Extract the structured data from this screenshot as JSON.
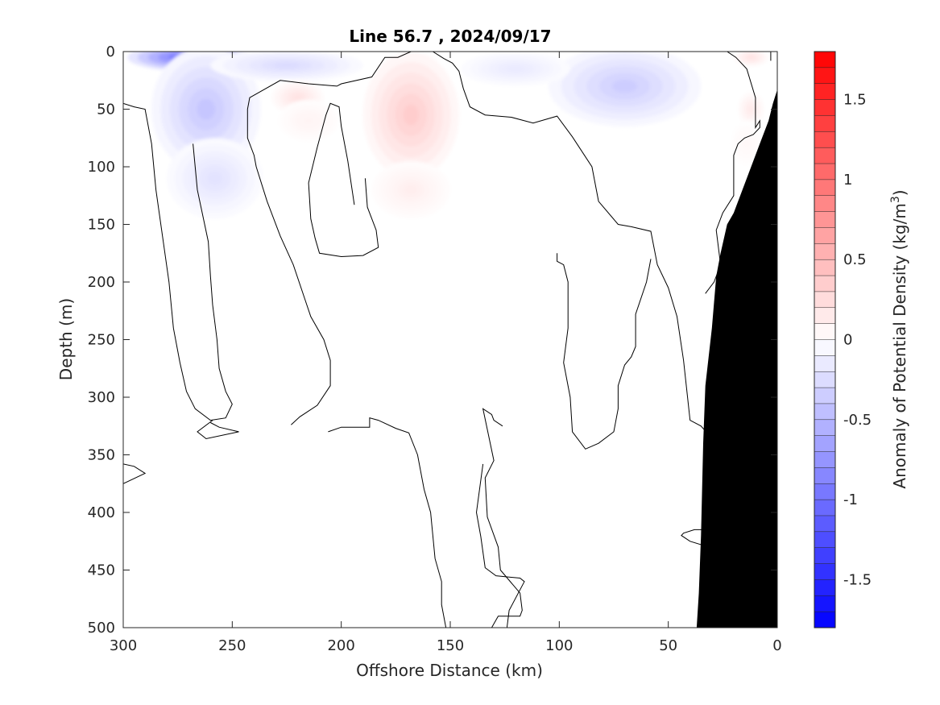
{
  "chart_data": {
    "type": "heatmap",
    "title": "Line 56.7 , 2024/09/17",
    "xlabel": "Offshore Distance (km)",
    "ylabel": "Depth (m)",
    "xlim": [
      300,
      0
    ],
    "ylim": [
      0,
      500
    ],
    "x_reversed": true,
    "y_reversed": true,
    "xticks": [
      300,
      250,
      200,
      150,
      100,
      50,
      0
    ],
    "yticks": [
      0,
      50,
      100,
      150,
      200,
      250,
      300,
      350,
      400,
      450,
      500
    ],
    "grid": false,
    "colorbar": {
      "label_main": "Anomaly of Potential Density (kg/m",
      "label_sup": "3",
      "label_end": ")",
      "range": [
        -1.8,
        1.8
      ],
      "levels": 36,
      "ticks": [
        "-1.5",
        "-1",
        "-0.5",
        "0",
        "0.5",
        "1",
        "1.5"
      ],
      "tick_values": [
        -1.5,
        -1,
        -0.5,
        0,
        0.5,
        1,
        1.5
      ],
      "neg_color": "#0000ff",
      "pos_color": "#ff0000",
      "mid_color": "#ffffff"
    },
    "anomaly_blobs": [
      {
        "x": 270,
        "y": 5,
        "rx": 28,
        "ry": 12,
        "value": -1.1
      },
      {
        "x": 262,
        "y": 50,
        "rx": 25,
        "ry": 55,
        "value": -0.4
      },
      {
        "x": 258,
        "y": 110,
        "rx": 22,
        "ry": 35,
        "value": -0.2
      },
      {
        "x": 225,
        "y": 12,
        "rx": 35,
        "ry": 14,
        "value": -0.25
      },
      {
        "x": 168,
        "y": 55,
        "rx": 22,
        "ry": 55,
        "value": 0.35
      },
      {
        "x": 168,
        "y": 120,
        "rx": 18,
        "ry": 25,
        "value": 0.12
      },
      {
        "x": 220,
        "y": 40,
        "rx": 12,
        "ry": 15,
        "value": 0.2
      },
      {
        "x": 215,
        "y": 60,
        "rx": 14,
        "ry": 18,
        "value": 0.08
      },
      {
        "x": 72,
        "y": 8,
        "rx": 20,
        "ry": 12,
        "value": -0.55
      },
      {
        "x": 70,
        "y": 30,
        "rx": 35,
        "ry": 35,
        "value": -0.35
      },
      {
        "x": 120,
        "y": 15,
        "rx": 25,
        "ry": 15,
        "value": -0.15
      },
      {
        "x": 12,
        "y": 5,
        "rx": 8,
        "ry": 8,
        "value": 0.2
      },
      {
        "x": 12,
        "y": 50,
        "rx": 6,
        "ry": 15,
        "value": 0.15
      },
      {
        "x": 14,
        "y": 80,
        "rx": 8,
        "ry": 20,
        "value": 0.05
      }
    ],
    "zero_contours": [
      [
        [
          300,
          45
        ],
        [
          295,
          48
        ],
        [
          290,
          50
        ],
        [
          287,
          80
        ],
        [
          285,
          120
        ],
        [
          282,
          160
        ],
        [
          279,
          200
        ],
        [
          277,
          240
        ],
        [
          274,
          270
        ],
        [
          271,
          295
        ],
        [
          267,
          310
        ],
        [
          260,
          320
        ],
        [
          253,
          318
        ],
        [
          250,
          306
        ],
        [
          253,
          295
        ],
        [
          256,
          275
        ],
        [
          257,
          250
        ],
        [
          259,
          220
        ],
        [
          260,
          195
        ],
        [
          261,
          165
        ],
        [
          266,
          120
        ],
        [
          268,
          80
        ]
      ],
      [
        [
          259,
          320
        ],
        [
          266,
          330
        ],
        [
          262,
          336
        ],
        [
          247,
          330
        ],
        [
          256,
          326
        ],
        [
          260,
          322
        ]
      ],
      [
        [
          300,
          358
        ],
        [
          295,
          360
        ],
        [
          290,
          366
        ],
        [
          300,
          375
        ]
      ],
      [
        [
          239,
          100
        ],
        [
          234,
          130
        ],
        [
          228,
          160
        ],
        [
          222,
          185
        ],
        [
          214,
          230
        ],
        [
          208,
          250
        ],
        [
          205,
          268
        ],
        [
          205,
          290
        ],
        [
          211,
          307
        ],
        [
          219,
          317
        ],
        [
          223,
          324
        ]
      ],
      [
        [
          239,
          100
        ],
        [
          240,
          90
        ],
        [
          243,
          75
        ],
        [
          243,
          50
        ],
        [
          242,
          40
        ],
        [
          228,
          25
        ],
        [
          215,
          28
        ],
        [
          202,
          30
        ],
        [
          200,
          28
        ],
        [
          186,
          22
        ],
        [
          180,
          5
        ],
        [
          174,
          5
        ],
        [
          168,
          0
        ]
      ],
      [
        [
          194,
          133
        ],
        [
          197,
          95
        ],
        [
          200,
          65
        ],
        [
          201,
          48
        ],
        [
          205,
          45
        ],
        [
          207,
          55
        ],
        [
          211,
          83
        ],
        [
          215,
          114
        ],
        [
          214,
          145
        ],
        [
          212,
          162
        ],
        [
          210,
          175
        ],
        [
          200,
          178
        ],
        [
          190,
          177
        ],
        [
          183,
          170
        ],
        [
          184,
          155
        ],
        [
          188,
          135
        ],
        [
          189,
          110
        ]
      ],
      [
        [
          158,
          0
        ],
        [
          153,
          6
        ],
        [
          149,
          10
        ],
        [
          146,
          17
        ],
        [
          144,
          32
        ],
        [
          141,
          48
        ],
        [
          134,
          55
        ],
        [
          122,
          57
        ],
        [
          112,
          62
        ],
        [
          101,
          56
        ],
        [
          94,
          74
        ],
        [
          85,
          100
        ],
        [
          82,
          130
        ],
        [
          73,
          150
        ],
        [
          67,
          152
        ],
        [
          58,
          156
        ],
        [
          55,
          185
        ],
        [
          50,
          205
        ],
        [
          46,
          230
        ],
        [
          43,
          268
        ],
        [
          40,
          320
        ],
        [
          35,
          325
        ],
        [
          28,
          340
        ],
        [
          32,
          360
        ]
      ],
      [
        [
          101,
          175
        ],
        [
          101,
          178
        ],
        [
          101,
          182
        ],
        [
          98,
          185
        ],
        [
          96,
          200
        ],
        [
          96,
          240
        ],
        [
          98,
          270
        ],
        [
          95,
          300
        ],
        [
          94,
          330
        ],
        [
          88,
          345
        ],
        [
          82,
          340
        ],
        [
          75,
          330
        ],
        [
          73,
          310
        ],
        [
          73,
          290
        ],
        [
          70,
          272
        ],
        [
          67,
          265
        ],
        [
          65,
          256
        ],
        [
          65,
          228
        ],
        [
          60,
          200
        ],
        [
          58,
          180
        ]
      ],
      [
        [
          152,
          500
        ],
        [
          154,
          480
        ],
        [
          154,
          460
        ],
        [
          157,
          440
        ],
        [
          159,
          400
        ],
        [
          162,
          380
        ],
        [
          165,
          350
        ],
        [
          169,
          331
        ],
        [
          175,
          327
        ],
        [
          183,
          320
        ],
        [
          187,
          318
        ],
        [
          187,
          326
        ],
        [
          200,
          326
        ],
        [
          206,
          330
        ]
      ],
      [
        [
          126,
          325
        ],
        [
          130,
          320
        ],
        [
          131,
          315
        ],
        [
          135,
          310
        ],
        [
          130,
          355
        ],
        [
          134,
          370
        ],
        [
          133,
          404
        ],
        [
          128,
          430
        ],
        [
          127,
          450
        ],
        [
          118,
          470
        ],
        [
          117,
          485
        ],
        [
          118,
          490
        ],
        [
          128,
          490
        ],
        [
          131,
          500
        ]
      ],
      [
        [
          124,
          500
        ],
        [
          123,
          485
        ],
        [
          116,
          460
        ],
        [
          118,
          457
        ],
        [
          129,
          455
        ],
        [
          134,
          448
        ],
        [
          136,
          421
        ],
        [
          138,
          400
        ],
        [
          135,
          358
        ]
      ],
      [
        [
          23,
          0
        ],
        [
          19,
          5
        ],
        [
          14,
          15
        ],
        [
          10,
          40
        ],
        [
          10,
          66
        ],
        [
          8,
          60
        ],
        [
          8,
          66
        ],
        [
          11,
          72
        ],
        [
          15,
          75
        ],
        [
          18,
          80
        ],
        [
          20,
          90
        ],
        [
          20,
          115
        ],
        [
          20,
          125
        ],
        [
          25,
          140
        ],
        [
          28,
          155
        ],
        [
          26,
          185
        ],
        [
          29,
          200
        ],
        [
          33,
          210
        ]
      ],
      [
        [
          3,
          0
        ],
        [
          3,
          6
        ],
        [
          3,
          8
        ]
      ],
      [
        [
          33,
          415
        ],
        [
          38,
          415
        ],
        [
          43,
          418
        ],
        [
          44,
          420
        ],
        [
          40,
          425
        ],
        [
          35,
          428
        ],
        [
          32,
          425
        ]
      ]
    ],
    "bathymetry": {
      "fill": "#000000",
      "points": [
        [
          0,
          33
        ],
        [
          2,
          45
        ],
        [
          4,
          60
        ],
        [
          8,
          80
        ],
        [
          12,
          100
        ],
        [
          16,
          120
        ],
        [
          20,
          140
        ],
        [
          23,
          150
        ],
        [
          26,
          175
        ],
        [
          28,
          195
        ],
        [
          30,
          240
        ],
        [
          33,
          290
        ],
        [
          34,
          340
        ],
        [
          35,
          420
        ],
        [
          36,
          470
        ],
        [
          37,
          500
        ],
        [
          0,
          500
        ]
      ]
    }
  }
}
